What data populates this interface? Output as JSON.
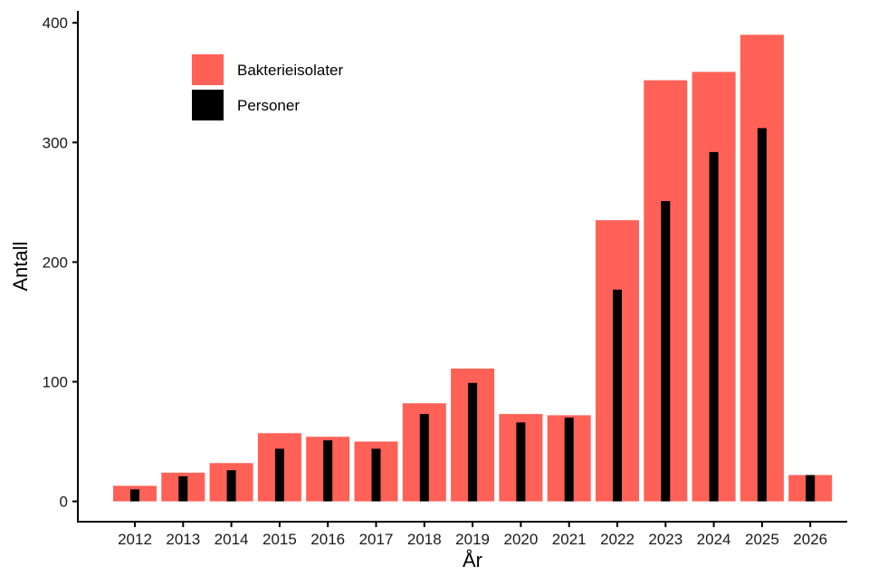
{
  "chart_data": {
    "type": "bar",
    "title": "",
    "xlabel": "År",
    "ylabel": "Antall",
    "ylim": [
      -17,
      410
    ],
    "yticks": [
      0,
      100,
      200,
      300,
      400
    ],
    "grid": false,
    "legend_position": "top-left",
    "categories": [
      "2012",
      "2013",
      "2014",
      "2015",
      "2016",
      "2017",
      "2018",
      "2019",
      "2020",
      "2021",
      "2022",
      "2023",
      "2024",
      "2025",
      "2026"
    ],
    "series": [
      {
        "name": "Bakterieisolater",
        "color": "#FF6157",
        "values": [
          13,
          24,
          32,
          57,
          54,
          50,
          82,
          111,
          73,
          72,
          235,
          352,
          359,
          390,
          22
        ]
      },
      {
        "name": "Personer",
        "color": "#000000",
        "values": [
          10,
          21,
          26,
          44,
          51,
          44,
          73,
          99,
          66,
          70,
          177,
          251,
          292,
          312,
          22
        ]
      }
    ]
  }
}
